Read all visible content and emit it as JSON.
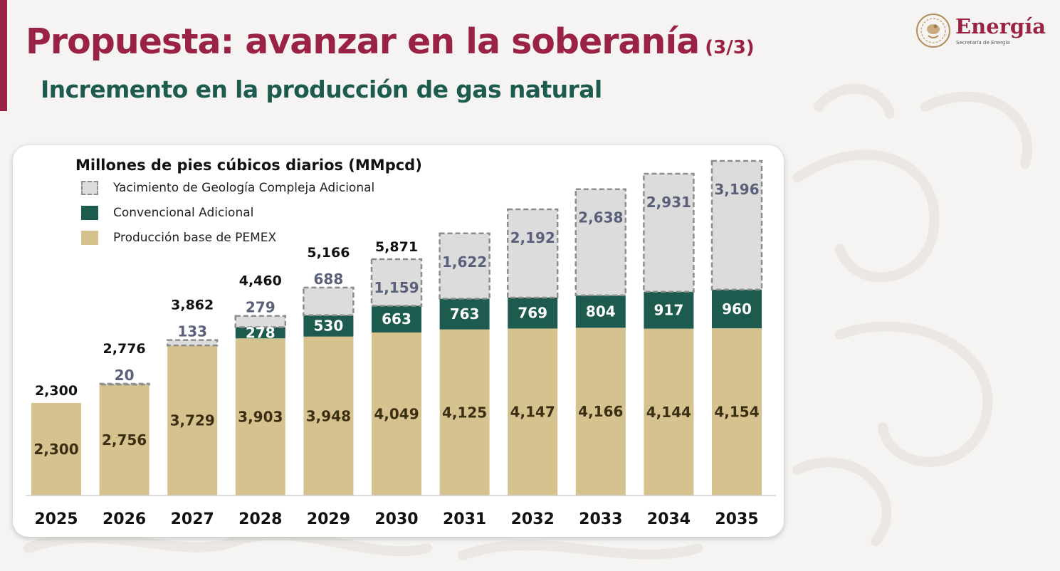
{
  "header": {
    "title": "Propuesta: avanzar en la soberanía",
    "title_part": "(3/3)",
    "subtitle": "Incremento en la producción de gas natural"
  },
  "logo": {
    "name": "Energía",
    "subtitle": "Secretaría de Energía",
    "icon": "coat-of-arms-icon"
  },
  "colors": {
    "brand": "#9b2247",
    "subtitle": "#1e5b4f",
    "base": "#d5c28f",
    "conventional": "#1e5b4f",
    "complex": "#dcdcdc",
    "complex_border": "#8d8d8d"
  },
  "chart_data": {
    "type": "bar",
    "stacked": true,
    "title": "Millones de pies cúbicos diarios (MMpcd)",
    "categories": [
      "2025",
      "2026",
      "2027",
      "2028",
      "2029",
      "2030",
      "2031",
      "2032",
      "2033",
      "2034",
      "2035"
    ],
    "series": [
      {
        "name": "Producción base de PEMEX",
        "values": [
          2300,
          2756,
          3729,
          3903,
          3948,
          4049,
          4125,
          4147,
          4166,
          4144,
          4154
        ]
      },
      {
        "name": "Convencional Adicional",
        "values": [
          0,
          0,
          0,
          278,
          530,
          663,
          763,
          769,
          804,
          917,
          960
        ]
      },
      {
        "name": "Yacimiento de Geología Compleja Adicional",
        "values": [
          0,
          20,
          133,
          279,
          688,
          1159,
          1622,
          2192,
          2638,
          2931,
          3196
        ]
      }
    ],
    "totals": [
      2300,
      2776,
      3862,
      4460,
      5166,
      5871,
      6510,
      7108,
      7608,
      7992,
      8310
    ],
    "total_labels": [
      "2,300",
      "2,776",
      "3,862",
      "4,460",
      "5,166",
      "5,871"
    ],
    "legend_order": [
      "Yacimiento de Geología Compleja Adicional",
      "Convencional Adicional",
      "Producción base de PEMEX"
    ],
    "legend_position": "top-left",
    "ylim": [
      0,
      8310
    ],
    "grid": false
  }
}
